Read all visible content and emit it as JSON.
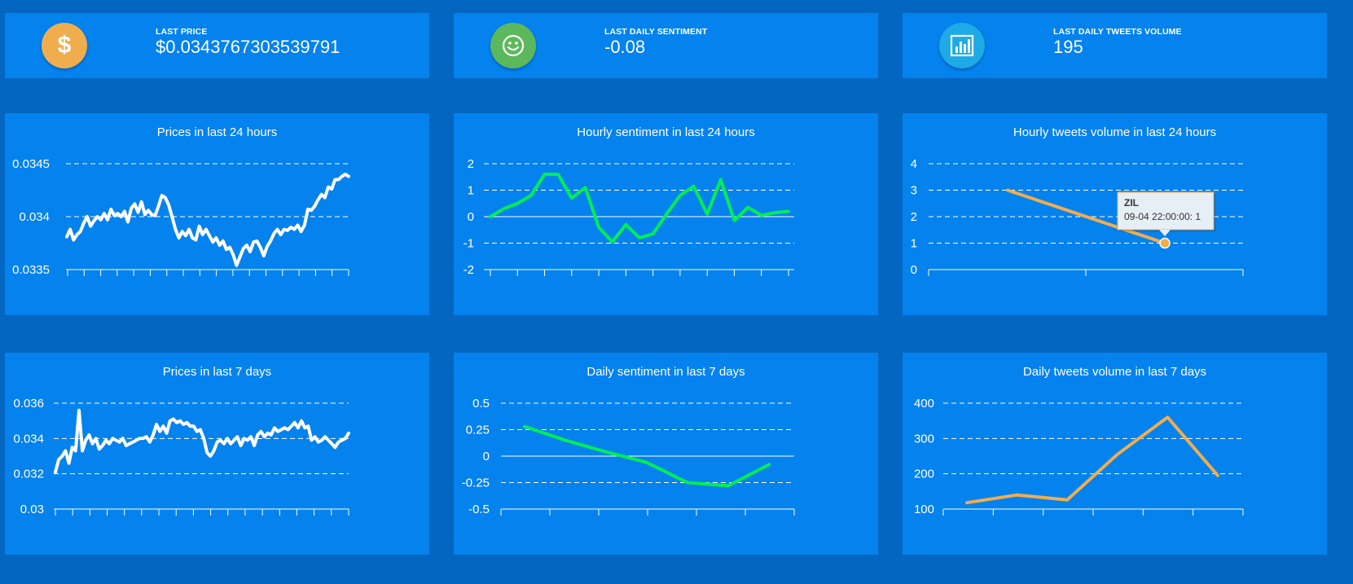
{
  "stats": [
    {
      "label": "LAST PRICE",
      "value": "$0.0343767303539791",
      "icon": "dollar-icon",
      "color": "#f0ad4e",
      "glyph": "$"
    },
    {
      "label": "LAST DAILY SENTIMENT",
      "value": "-0.08",
      "icon": "smiley-icon",
      "color": "#5cb85c",
      "glyph": "☺"
    },
    {
      "label": "LAST DAILY TWEETS VOLUME",
      "value": "195",
      "icon": "bar-chart-icon",
      "color": "#1eaae6",
      "glyph": ""
    }
  ],
  "chart_data": [
    {
      "id": "prices-24h",
      "type": "line",
      "title": "Prices in last 24 hours",
      "color": "#ffffff",
      "ylim": [
        0.0335,
        0.0345
      ],
      "yticks": [
        0.0345,
        0.034,
        0.0335
      ],
      "ytick_labels": [
        "0.0345",
        "0.034",
        "0.0335"
      ],
      "xtick_count": 18,
      "series": [
        {
          "values": [
            0.03381,
            0.03388,
            0.03378,
            0.03383,
            0.03386,
            0.03394,
            0.034,
            0.03391,
            0.03396,
            0.034,
            0.03397,
            0.03403,
            0.03397,
            0.03407,
            0.03401,
            0.03403,
            0.034,
            0.03405,
            0.03395,
            0.03408,
            0.03412,
            0.03404,
            0.03414,
            0.03402,
            0.03406,
            0.03402,
            0.03401,
            0.0341,
            0.0342,
            0.03418,
            0.03411,
            0.034,
            0.03388,
            0.0338,
            0.03386,
            0.03382,
            0.03388,
            0.0338,
            0.03378,
            0.03391,
            0.03383,
            0.03388,
            0.03382,
            0.03376,
            0.0338,
            0.03373,
            0.03377,
            0.03369,
            0.03371,
            0.03364,
            0.03354,
            0.03362,
            0.0337,
            0.03373,
            0.03367,
            0.03376,
            0.03377,
            0.03371,
            0.03363,
            0.03372,
            0.03377,
            0.03384,
            0.03388,
            0.03383,
            0.03388,
            0.03387,
            0.0339,
            0.03388,
            0.03392,
            0.03386,
            0.03392,
            0.03407,
            0.03406,
            0.0341,
            0.03416,
            0.03421,
            0.03418,
            0.03428,
            0.03426,
            0.03435,
            0.03435,
            0.03438,
            0.0344,
            0.03438
          ]
        }
      ]
    },
    {
      "id": "sentiment-24h",
      "type": "line",
      "title": "Hourly sentiment in last 24 hours",
      "color": "#00ee55",
      "ylim": [
        -2,
        2
      ],
      "yticks": [
        2,
        1,
        0,
        -1,
        -2
      ],
      "ytick_labels": [
        "2",
        "1",
        "0",
        "-1",
        "-2"
      ],
      "xtick_count": 12,
      "zero_line": true,
      "series": [
        {
          "values": [
            0,
            0.3,
            0.5,
            0.8,
            1.6,
            1.6,
            0.7,
            1.1,
            -0.4,
            -0.95,
            -0.3,
            -0.8,
            -0.65,
            0.1,
            0.8,
            1.15,
            0.1,
            1.4,
            -0.15,
            0.35,
            0.05,
            0.15,
            0.2
          ]
        }
      ]
    },
    {
      "id": "tweets-24h",
      "type": "line",
      "title": "Hourly tweets volume in last 24 hours",
      "color": "#f0ad4e",
      "ylim": [
        0,
        4
      ],
      "yticks": [
        4,
        3,
        2,
        1,
        0
      ],
      "ytick_labels": [
        "4",
        "3",
        "2",
        "1",
        "0"
      ],
      "xtick_count": 3,
      "series": [
        {
          "values": [
            3,
            1
          ]
        }
      ],
      "tooltip": {
        "title": "ZIL",
        "text": "09-04 22:00:00: 1"
      }
    },
    {
      "id": "prices-7d",
      "type": "line",
      "title": "Prices in last 7 days",
      "color": "#ffffff",
      "ylim": [
        0.03,
        0.036
      ],
      "yticks": [
        0.036,
        0.034,
        0.032,
        0.03
      ],
      "ytick_labels": [
        "0.036",
        "0.034",
        "0.032",
        "0.03"
      ],
      "xtick_count": 18,
      "series": [
        {
          "values": [
            0.0321,
            0.0328,
            0.033,
            0.0333,
            0.0326,
            0.0335,
            0.0333,
            0.0356,
            0.0333,
            0.0339,
            0.0342,
            0.0337,
            0.034,
            0.0334,
            0.0336,
            0.0339,
            0.0337,
            0.034,
            0.0339,
            0.0338,
            0.034,
            0.0336,
            0.0337,
            0.0338,
            0.0339,
            0.034,
            0.034,
            0.0341,
            0.0338,
            0.0342,
            0.0348,
            0.0344,
            0.0347,
            0.0343,
            0.035,
            0.0351,
            0.0349,
            0.035,
            0.0348,
            0.0349,
            0.0347,
            0.0347,
            0.0344,
            0.0345,
            0.034,
            0.0332,
            0.033,
            0.0333,
            0.0338,
            0.0339,
            0.0337,
            0.034,
            0.0337,
            0.0339,
            0.0341,
            0.0336,
            0.034,
            0.0339,
            0.0341,
            0.0336,
            0.0342,
            0.0344,
            0.0341,
            0.0343,
            0.0342,
            0.0346,
            0.0344,
            0.0345,
            0.0346,
            0.0345,
            0.0347,
            0.0349,
            0.0346,
            0.035,
            0.0346,
            0.0347,
            0.0339,
            0.0341,
            0.0338,
            0.0339,
            0.0341,
            0.0339,
            0.0337,
            0.0335,
            0.0338,
            0.0339,
            0.034,
            0.0343
          ]
        }
      ]
    },
    {
      "id": "sentiment-7d",
      "type": "line",
      "title": "Daily sentiment in last 7 days",
      "color": "#00ee55",
      "ylim": [
        -0.5,
        0.5
      ],
      "yticks": [
        0.5,
        0.25,
        0,
        -0.25,
        -0.5
      ],
      "ytick_labels": [
        "0.5",
        "0.25",
        "0",
        "-0.25",
        "-0.5"
      ],
      "xtick_count": 7,
      "zero_line": true,
      "series": [
        {
          "values": [
            0.28,
            0.15,
            0.04,
            -0.06,
            -0.25,
            -0.28,
            -0.08
          ]
        }
      ]
    },
    {
      "id": "tweets-7d",
      "type": "line",
      "title": "Daily tweets volume in last 7 days",
      "color": "#f0ad4e",
      "ylim": [
        100,
        400
      ],
      "yticks": [
        400,
        300,
        200,
        100
      ],
      "ytick_labels": [
        "400",
        "300",
        "200",
        "100"
      ],
      "xtick_count": 7,
      "series": [
        {
          "values": [
            118,
            140,
            126,
            255,
            360,
            195
          ]
        }
      ]
    }
  ]
}
